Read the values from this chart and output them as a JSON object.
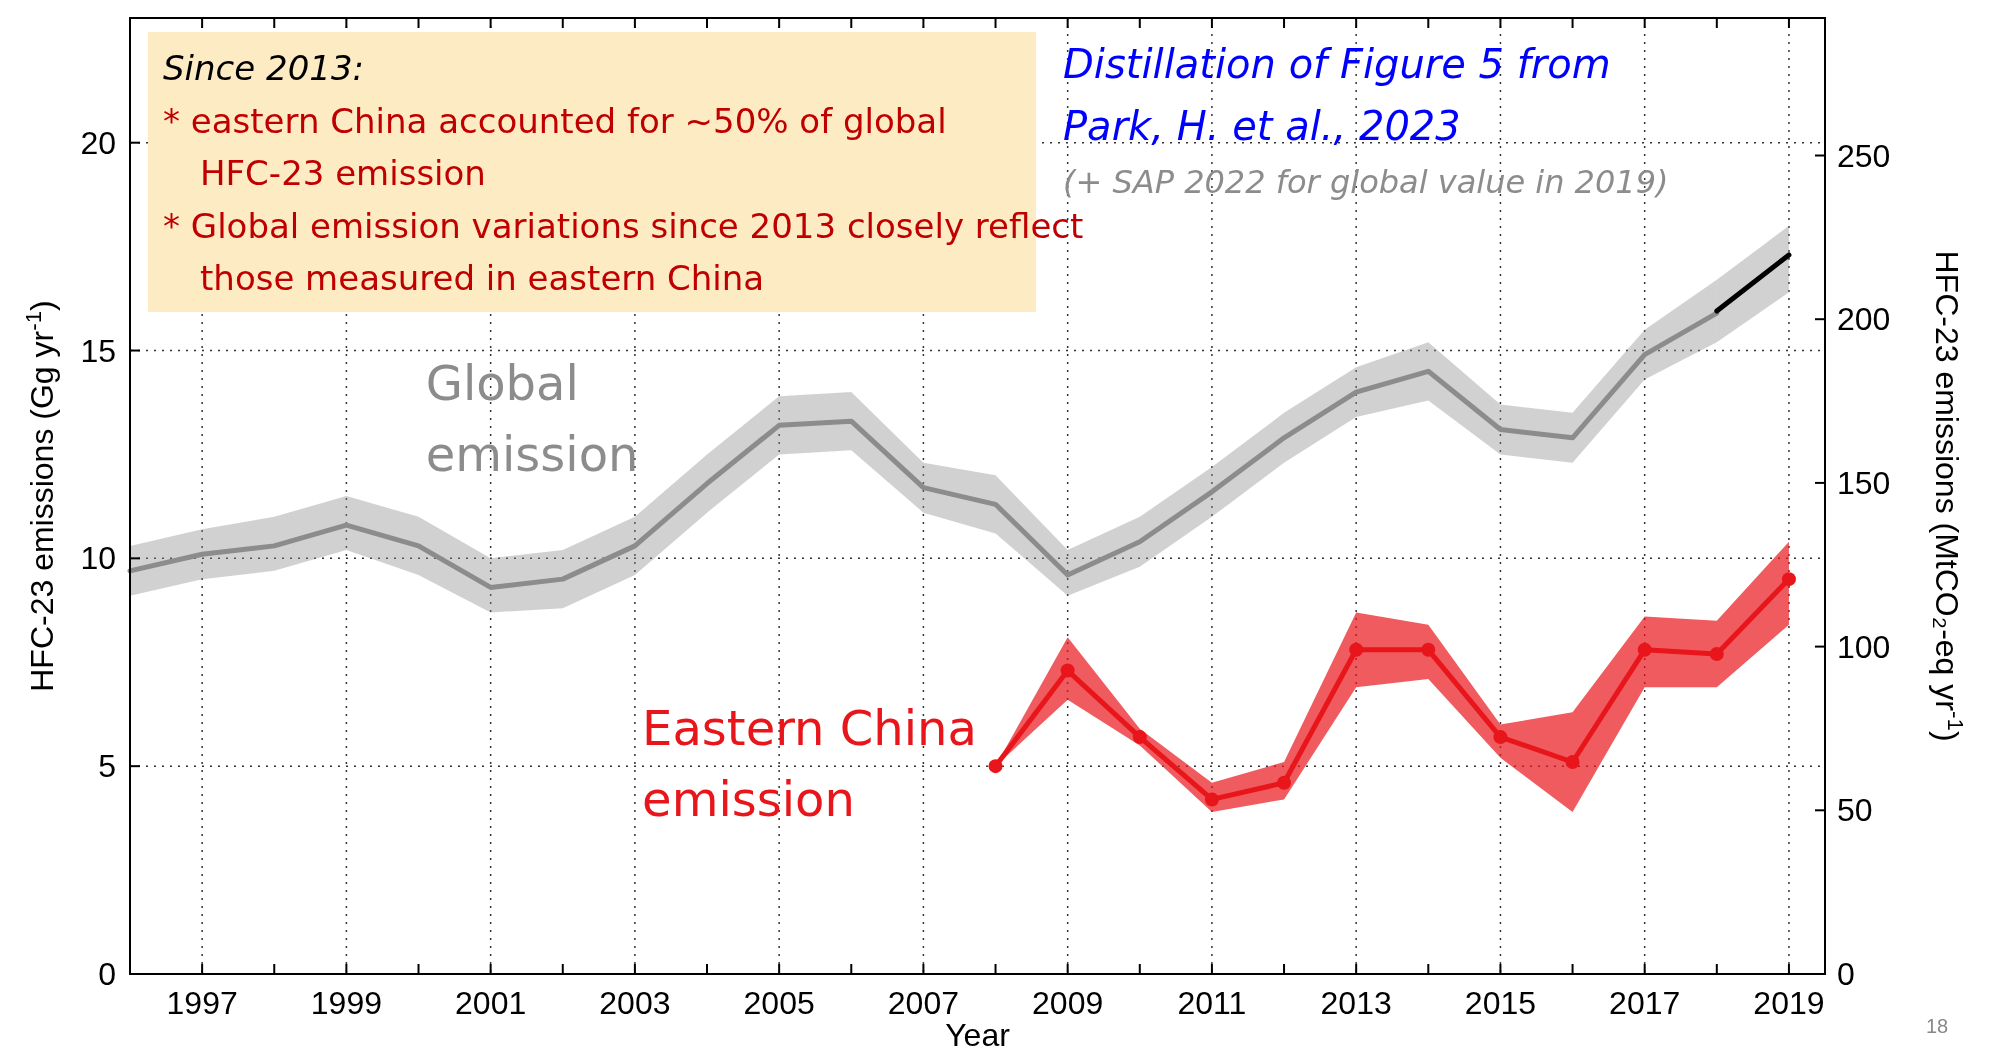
{
  "chart_data": {
    "type": "line",
    "xlabel": "Year",
    "ylabel": "HFC-23 emissions (Gg yr$^{-1}$)",
    "y2label": "HFC-23 emissions (MtCO₂-eq yr$^{-1}$)",
    "xlim": [
      1996,
      2019.5
    ],
    "xticks": [
      {
        "value": 1996,
        "label": null
      },
      1997,
      {
        "value": 1998,
        "label": null
      },
      1999,
      {
        "value": 2000,
        "label": null
      },
      2001,
      {
        "value": 2002,
        "label": null
      },
      2003,
      {
        "value": 2004,
        "label": null
      },
      2005,
      {
        "value": 2006,
        "label": null
      },
      2007,
      {
        "value": 2008,
        "label": null
      },
      2009,
      {
        "value": 2010,
        "label": null
      },
      2011,
      {
        "value": 2012,
        "label": null
      },
      2013,
      {
        "value": 2014,
        "label": null
      },
      2015,
      {
        "value": 2016,
        "label": null
      },
      2017,
      {
        "value": 2018,
        "label": null
      },
      2019
    ],
    "ylim": [
      0,
      23
    ],
    "yticks": [
      0,
      5,
      10,
      15,
      20
    ],
    "y2lim": [
      0,
      292
    ],
    "y2ticks": [
      0,
      50,
      100,
      150,
      200,
      250
    ],
    "grid": true,
    "legend": false,
    "line_style": "solid",
    "series": [
      {
        "name": "Global emission",
        "color": "#8c8c8c",
        "marker": "none",
        "x": [
          1996,
          1997,
          1998,
          1999,
          2000,
          2001,
          2002,
          2003,
          2004,
          2005,
          2006,
          2007,
          2008,
          2009,
          2010,
          2011,
          2012,
          2013,
          2014,
          2015,
          2016,
          2017,
          2018
        ],
        "values": [
          9.7,
          10.1,
          10.3,
          10.8,
          10.3,
          9.3,
          9.5,
          10.3,
          11.8,
          13.2,
          13.3,
          11.7,
          11.3,
          9.6,
          10.4,
          11.6,
          12.9,
          14.0,
          14.5,
          13.1,
          12.9,
          14.9,
          15.9
        ],
        "lower": [
          9.1,
          9.5,
          9.7,
          10.2,
          9.6,
          8.7,
          8.8,
          9.6,
          11.1,
          12.5,
          12.6,
          11.1,
          10.6,
          9.1,
          9.8,
          11.0,
          12.3,
          13.4,
          13.8,
          12.5,
          12.3,
          14.3,
          15.2
        ],
        "upper": [
          10.3,
          10.7,
          11.0,
          11.5,
          11.0,
          10.0,
          10.2,
          11.0,
          12.5,
          13.9,
          14.0,
          12.3,
          12.0,
          10.2,
          11.0,
          12.2,
          13.5,
          14.6,
          15.2,
          13.7,
          13.5,
          15.5,
          16.7
        ]
      },
      {
        "color": "#000000",
        "marker": "none",
        "x": [
          2018,
          2019
        ],
        "values": [
          15.95,
          17.3
        ],
        "lower": [
          15.2,
          16.4
        ],
        "upper": [
          16.7,
          18.0
        ]
      },
      {
        "name": "Eastern China emission",
        "color": "#e8151b",
        "marker": "circle",
        "x": [
          2008,
          2009,
          2010,
          2011,
          2012,
          2013,
          2014,
          2015,
          2016,
          2017,
          2018,
          2019
        ],
        "values": [
          5.0,
          7.3,
          5.7,
          4.2,
          4.6,
          7.8,
          7.8,
          5.7,
          5.1,
          7.8,
          7.7,
          9.5
        ],
        "lower": [
          5.0,
          6.6,
          5.5,
          3.9,
          4.2,
          6.9,
          7.1,
          5.2,
          3.9,
          6.9,
          6.9,
          8.4
        ],
        "upper": [
          5.0,
          8.1,
          5.9,
          4.6,
          5.1,
          8.7,
          8.4,
          6.0,
          6.3,
          8.6,
          8.5,
          10.4
        ]
      }
    ],
    "annotations": [
      "Since 2013:",
      "* eastern China accounted for ~50% of global HFC-23 emission",
      "* Global emission variations since 2013 closely reflect those measured in eastern China",
      "Distillation of Figure 5 from Park, H. et al., 2023",
      "(+ SAP 2022 for global value in 2019)",
      "18"
    ]
  }
}
